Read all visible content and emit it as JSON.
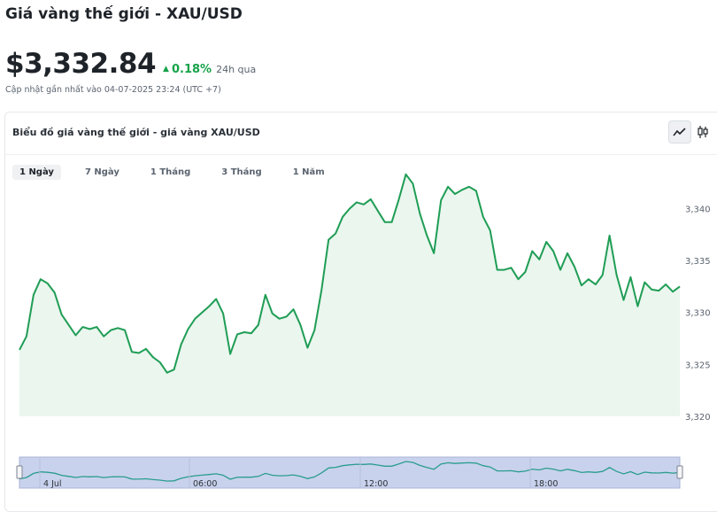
{
  "header": {
    "title": "Giá vàng thế giới - XAU/USD",
    "price": "$3,332.84",
    "change": "0.18%",
    "period": "24h qua",
    "updated": "Cập nhật gần nhất vào 04-07-2025 23:24 (UTC +7)"
  },
  "card": {
    "title": "Biểu đồ giá vàng thế giới - giá vàng XAU/USD",
    "tabs": [
      "1 Ngày",
      "7 Ngày",
      "1 Tháng",
      "3 Tháng",
      "1 Năm"
    ],
    "active_tab": 0,
    "tool_icons": [
      "line-chart-icon",
      "candlestick-icon"
    ]
  },
  "colors": {
    "line": "#1f9d55",
    "area": "#eaf6ee",
    "positive": "#16a34a",
    "navigator_fill": "#c9d2ec",
    "navigator_line": "#2a9d8f"
  },
  "chart_data": {
    "type": "area",
    "ylim": [
      3320,
      3342
    ],
    "y_ticks": [
      "3,320",
      "3,325",
      "3,330",
      "3,335",
      "3,340"
    ],
    "navigator_labels": [
      "4 Jul",
      "06:00",
      "12:00",
      "18:00"
    ],
    "series": [
      {
        "values": [
          3326.4,
          3327.7,
          3331.7,
          3333.2,
          3332.8,
          3331.9,
          3329.8,
          3328.8,
          3327.8,
          3328.6,
          3328.4,
          3328.6,
          3327.7,
          3328.3,
          3328.5,
          3328.3,
          3326.2,
          3326.1,
          3326.5,
          3325.7,
          3325.2,
          3324.2,
          3324.5,
          3326.9,
          3328.4,
          3329.4,
          3330.0,
          3330.6,
          3331.3,
          3329.9,
          3326.0,
          3327.9,
          3328.1,
          3328.0,
          3328.8,
          3331.7,
          3329.9,
          3329.4,
          3329.6,
          3330.3,
          3328.8,
          3326.6,
          3328.3,
          3332.2,
          3337.0,
          3337.6,
          3339.2,
          3340.0,
          3340.6,
          3340.4,
          3340.9,
          3339.8,
          3338.7,
          3338.7,
          3340.9,
          3343.3,
          3342.4,
          3339.5,
          3337.4,
          3335.7,
          3340.8,
          3342.1,
          3341.4,
          3341.8,
          3342.1,
          3341.7,
          3339.2,
          3337.9,
          3334.1,
          3334.1,
          3334.3,
          3333.2,
          3333.9,
          3335.9,
          3335.1,
          3336.8,
          3335.9,
          3334.1,
          3335.7,
          3334.4,
          3332.6,
          3333.2,
          3332.7,
          3333.6,
          3337.4,
          3333.6,
          3331.2,
          3333.4,
          3330.6,
          3332.9,
          3332.2,
          3332.1,
          3332.7,
          3332.0,
          3332.5
        ]
      }
    ]
  }
}
